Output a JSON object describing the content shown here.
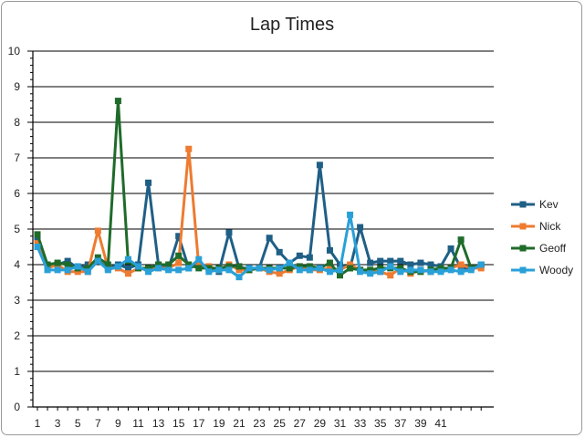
{
  "chart_data": {
    "type": "line",
    "title": "Lap Times",
    "xlabel": "",
    "ylabel": "",
    "ylim": [
      0,
      10
    ],
    "y_ticks": [
      0,
      1,
      2,
      3,
      4,
      5,
      6,
      7,
      8,
      9,
      10
    ],
    "x_tick_labels": [
      "1",
      "3",
      "5",
      "7",
      "9",
      "11",
      "13",
      "15",
      "17",
      "19",
      "21",
      "23",
      "25",
      "27",
      "29",
      "31",
      "33",
      "35",
      "37",
      "39",
      "41"
    ],
    "x": [
      1,
      2,
      3,
      4,
      5,
      6,
      7,
      8,
      9,
      10,
      11,
      12,
      13,
      14,
      15,
      16,
      17,
      18,
      19,
      20,
      21,
      22,
      23,
      24,
      25,
      26,
      27,
      28,
      29,
      30,
      31,
      32,
      33,
      34,
      35,
      36,
      37,
      38,
      39,
      40,
      41,
      42,
      43,
      44,
      45
    ],
    "grid": true,
    "legend_position": "right",
    "series": [
      {
        "name": "Kev",
        "color": "#1f5f86",
        "values": [
          4.7,
          4.0,
          4.0,
          4.1,
          3.9,
          4.0,
          4.1,
          3.9,
          4.0,
          3.9,
          4.0,
          6.3,
          4.0,
          3.9,
          4.8,
          3.9,
          4.0,
          3.9,
          3.8,
          4.9,
          3.9,
          3.9,
          3.9,
          4.75,
          4.35,
          4.05,
          4.25,
          4.2,
          6.8,
          4.4,
          4.0,
          3.9,
          5.05,
          4.05,
          4.1,
          4.1,
          4.1,
          4.0,
          4.05,
          4.0,
          3.95,
          4.45,
          3.9,
          3.9,
          4.0
        ]
      },
      {
        "name": "Nick",
        "color": "#ee7b30",
        "values": [
          4.6,
          3.9,
          4.0,
          3.8,
          3.8,
          3.8,
          4.95,
          3.9,
          3.9,
          3.75,
          3.9,
          3.85,
          3.9,
          3.9,
          4.05,
          7.25,
          3.95,
          3.95,
          3.85,
          4.0,
          3.85,
          3.85,
          3.9,
          3.8,
          3.75,
          3.85,
          3.95,
          3.85,
          3.85,
          3.9,
          3.85,
          4.0,
          3.85,
          3.8,
          3.8,
          3.7,
          3.9,
          3.75,
          3.85,
          3.8,
          3.85,
          3.9,
          4.0,
          3.9,
          3.9
        ]
      },
      {
        "name": "Geoff",
        "color": "#1f6b2a",
        "values": [
          4.85,
          4.0,
          4.05,
          4.0,
          3.9,
          3.9,
          4.2,
          4.0,
          8.6,
          4.1,
          3.9,
          3.9,
          4.0,
          4.0,
          4.25,
          4.0,
          3.9,
          3.9,
          3.9,
          3.95,
          3.95,
          3.85,
          3.9,
          3.9,
          3.9,
          3.9,
          3.95,
          3.95,
          3.9,
          4.05,
          3.7,
          3.9,
          3.85,
          3.85,
          3.9,
          3.9,
          3.9,
          3.8,
          3.8,
          3.85,
          3.9,
          3.9,
          4.7,
          3.9,
          4.0
        ]
      },
      {
        "name": "Woody",
        "color": "#29a0d8",
        "values": [
          4.5,
          3.85,
          3.85,
          3.85,
          3.95,
          3.8,
          4.1,
          3.85,
          3.95,
          4.15,
          3.95,
          3.8,
          3.9,
          3.85,
          3.85,
          3.9,
          4.15,
          3.8,
          3.85,
          3.85,
          3.65,
          3.9,
          3.9,
          3.85,
          3.9,
          4.05,
          3.85,
          3.85,
          3.9,
          3.8,
          3.85,
          5.4,
          3.8,
          3.75,
          3.8,
          3.95,
          3.8,
          3.85,
          3.85,
          3.8,
          3.8,
          3.85,
          3.8,
          3.85,
          4.0
        ]
      }
    ]
  }
}
